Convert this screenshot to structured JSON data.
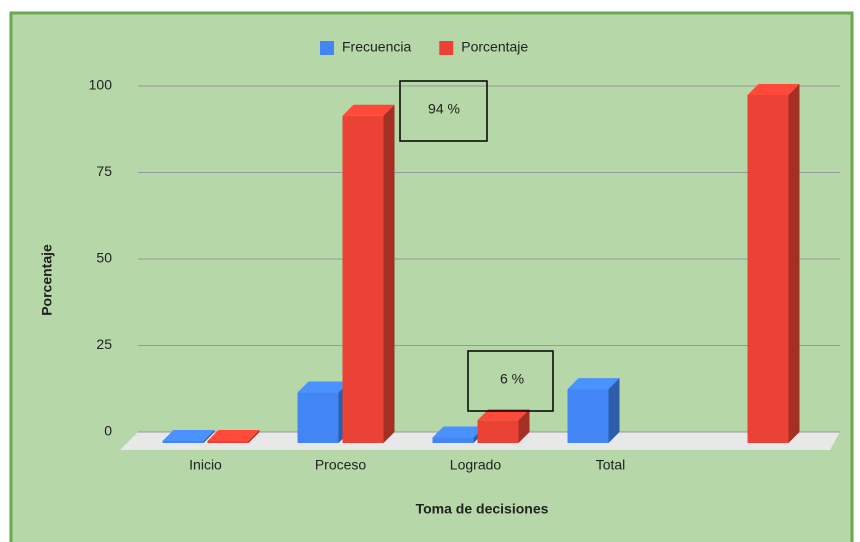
{
  "chart_data": {
    "type": "bar3d",
    "x_label": "Toma  de decisiones",
    "y_label": "Porcentaje",
    "categories": [
      "Inicio",
      "Proceso",
      "Logrado",
      "Total",
      null
    ],
    "series": [
      {
        "name": "Frecuencia",
        "color": "#4285f4",
        "values": [
          0,
          14,
          1,
          15,
          null
        ]
      },
      {
        "name": "Porcentaje",
        "color": "#ea4335",
        "values": [
          0,
          94,
          6,
          null,
          100
        ]
      }
    ],
    "ylim": [
      0,
      100
    ],
    "yticks": [
      0,
      25,
      50,
      75,
      100
    ],
    "grid": true,
    "legend": "top",
    "annotations": [
      "94 %",
      "6 %"
    ]
  }
}
